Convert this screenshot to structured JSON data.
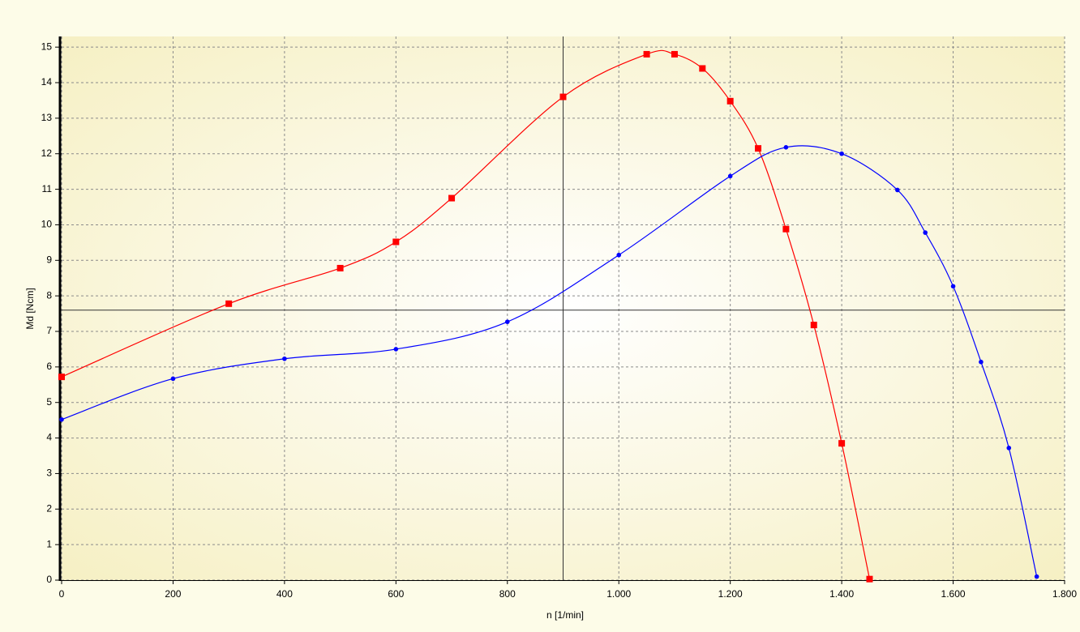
{
  "chart_data": {
    "type": "line",
    "x_label": "n [1/min]",
    "y_label": "Md [Ncm]",
    "xlim": [
      0,
      1800
    ],
    "ylim": [
      0,
      15.3
    ],
    "xticks": [
      0,
      200,
      400,
      600,
      800,
      {
        "value": 1000,
        "label": "1.000"
      },
      {
        "value": 1200,
        "label": "1.200"
      },
      {
        "value": 1400,
        "label": "1.400"
      },
      {
        "value": 1600,
        "label": "1.600"
      },
      {
        "value": 1800,
        "label": "1.800"
      }
    ],
    "yticks": [
      0,
      1,
      2,
      3,
      4,
      5,
      6,
      7,
      8,
      9,
      10,
      11,
      12,
      13,
      14,
      15
    ],
    "grid": true,
    "smooth": true,
    "crosshair": {
      "x": 900,
      "y": 7.6
    },
    "series": [
      {
        "color": "#ff0000",
        "marker": "square",
        "x": [
          0,
          300,
          500,
          600,
          700,
          900,
          1050,
          1100,
          1150,
          1200,
          1250,
          1300,
          1350,
          1400,
          1450
        ],
        "values": [
          5.72,
          7.78,
          8.78,
          9.52,
          10.75,
          13.6,
          14.8,
          14.8,
          14.4,
          13.48,
          12.15,
          9.88,
          7.18,
          3.85,
          0.03
        ]
      },
      {
        "color": "#0000ff",
        "marker": "dot",
        "x": [
          0,
          200,
          400,
          600,
          800,
          1000,
          1200,
          1300,
          1400,
          1500,
          1550,
          1600,
          1650,
          1700,
          1750
        ],
        "values": [
          4.52,
          5.67,
          6.23,
          6.5,
          7.27,
          9.15,
          11.37,
          12.18,
          12.0,
          10.98,
          9.78,
          8.27,
          6.14,
          3.72,
          0.1
        ]
      }
    ]
  }
}
